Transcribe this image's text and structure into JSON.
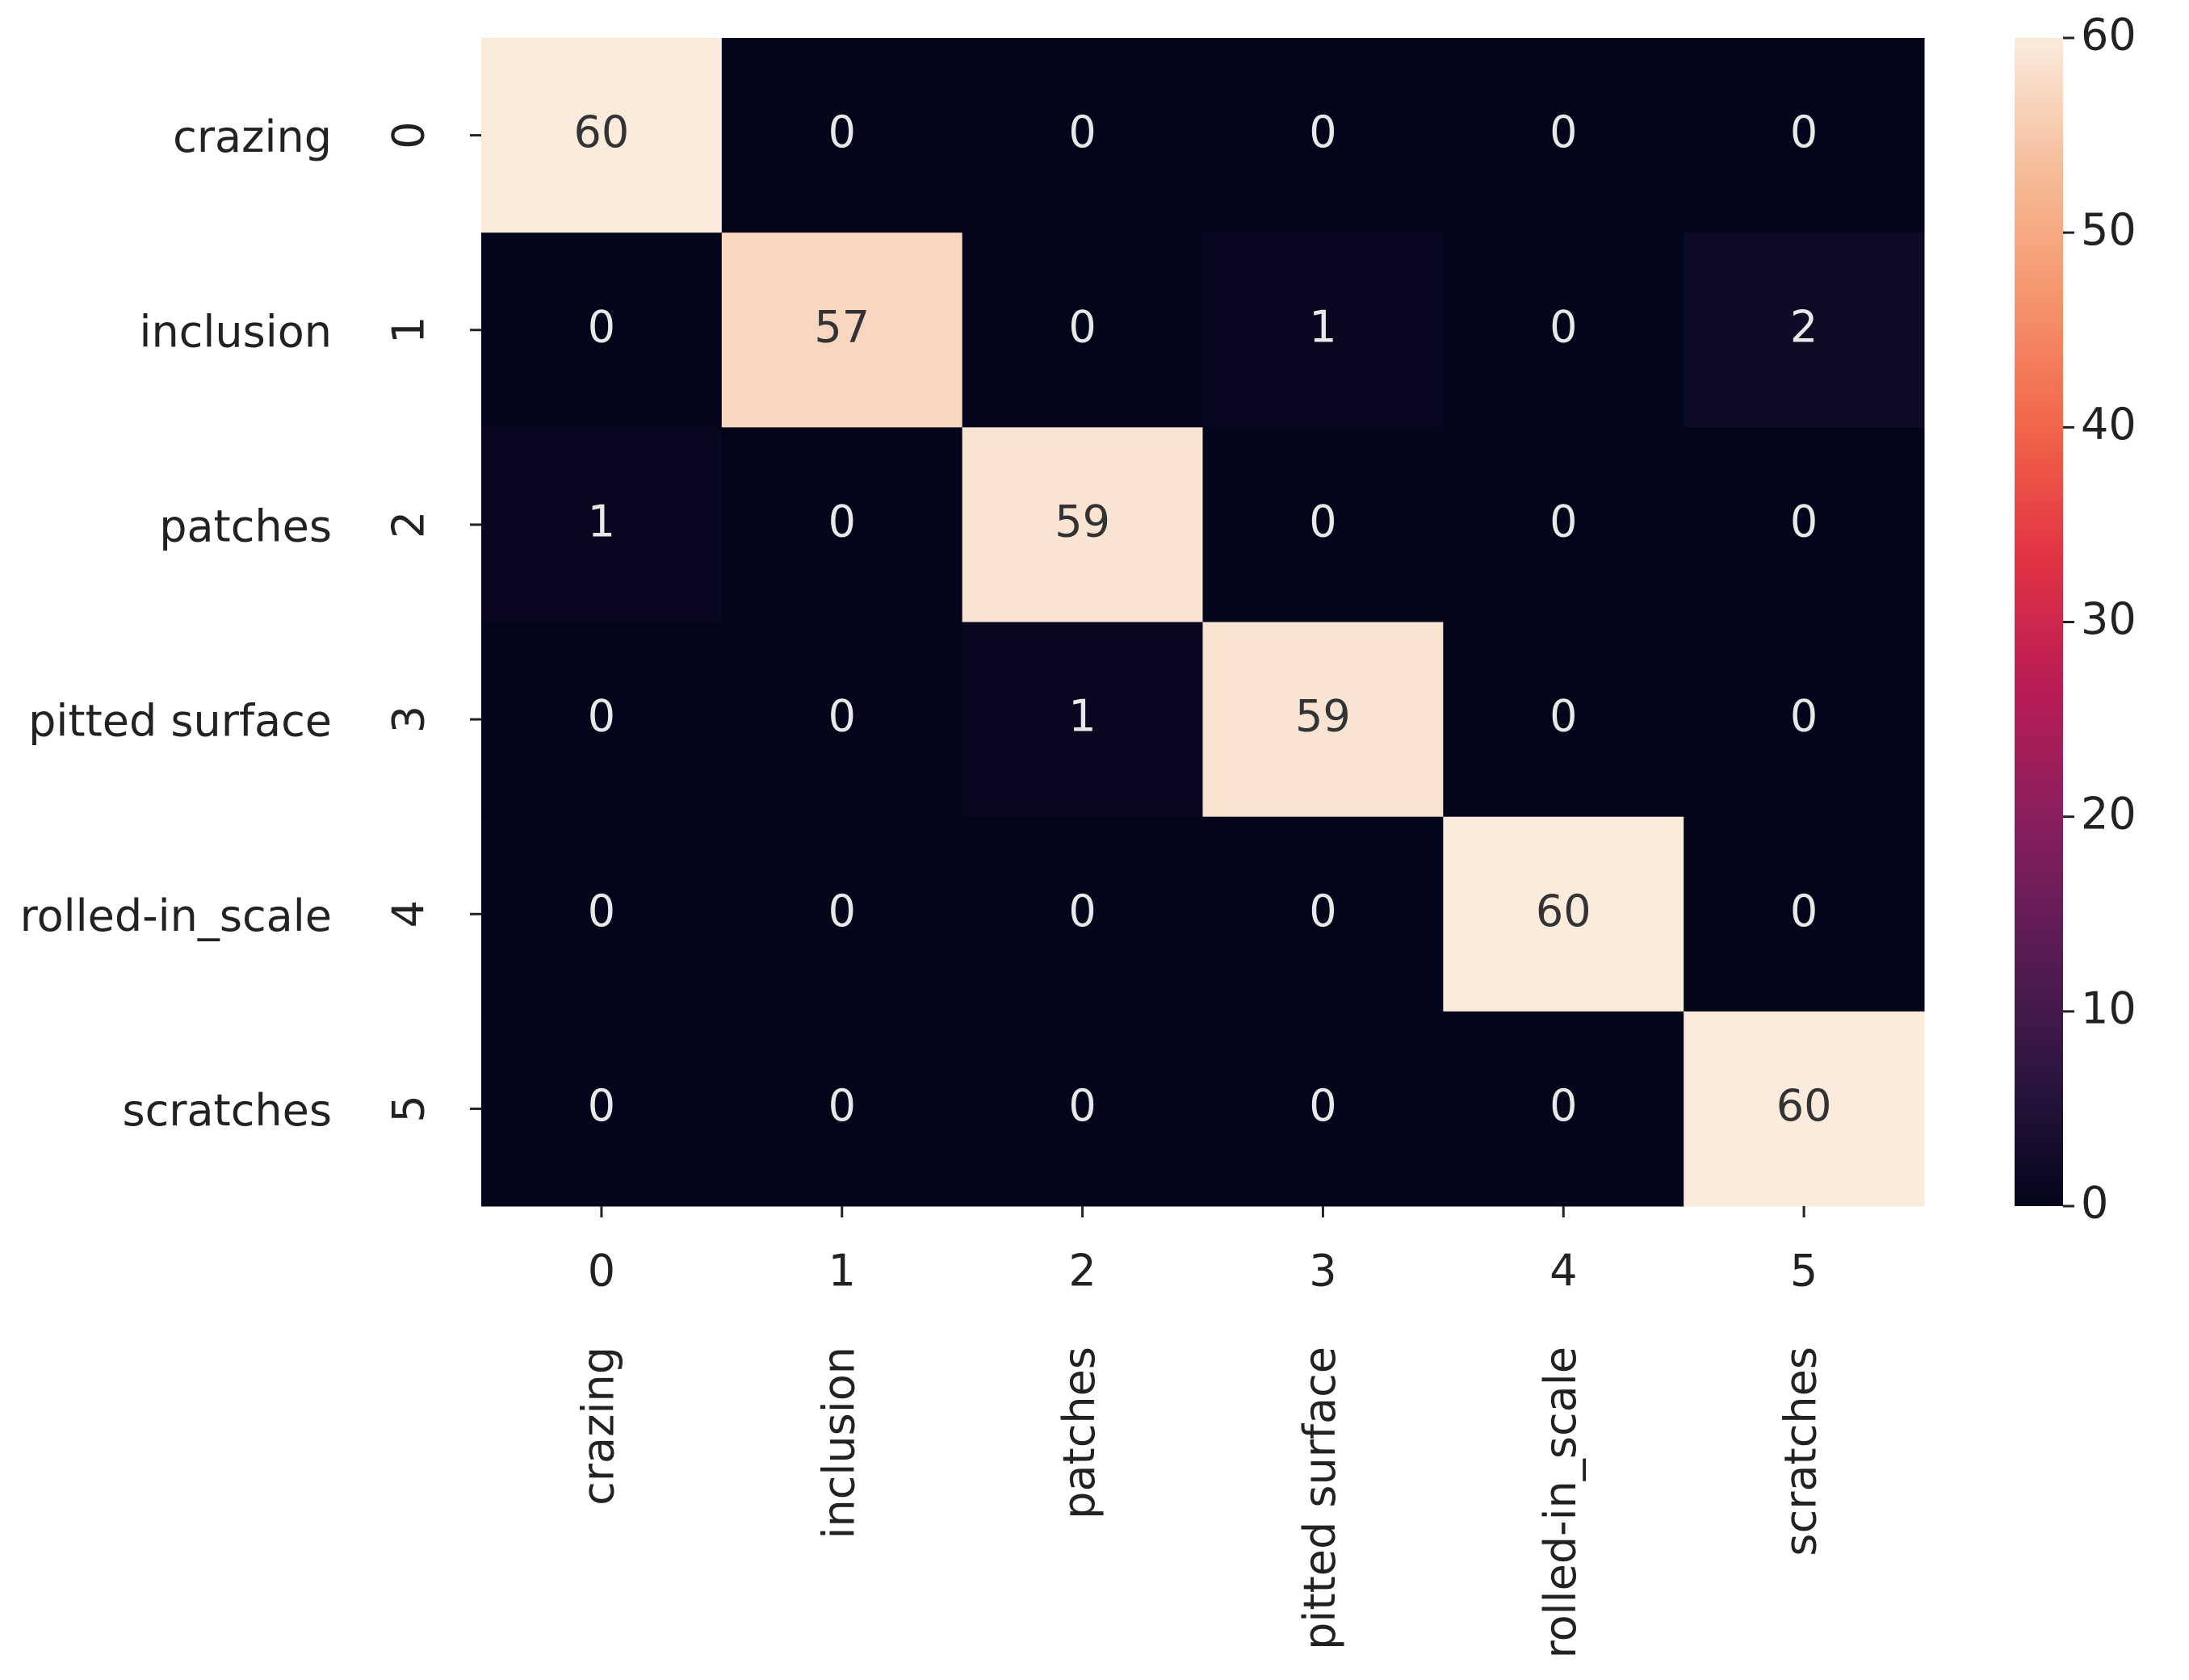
{
  "chart_data": {
    "type": "heatmap",
    "x_categories": [
      "0",
      "1",
      "2",
      "3",
      "4",
      "5"
    ],
    "x_names": [
      "crazing",
      "inclusion",
      "patches",
      "pitted surface",
      "rolled-in_scale",
      "scratches"
    ],
    "y_categories": [
      "0",
      "1",
      "2",
      "3",
      "4",
      "5"
    ],
    "y_names": [
      "crazing",
      "inclusion",
      "patches",
      "pitted surface",
      "rolled-in_scale",
      "scratches"
    ],
    "values": [
      [
        60,
        0,
        0,
        0,
        0,
        0
      ],
      [
        0,
        57,
        0,
        1,
        0,
        2
      ],
      [
        1,
        0,
        59,
        0,
        0,
        0
      ],
      [
        0,
        0,
        1,
        59,
        0,
        0
      ],
      [
        0,
        0,
        0,
        0,
        60,
        0
      ],
      [
        0,
        0,
        0,
        0,
        0,
        60
      ]
    ],
    "clim": [
      0,
      60
    ],
    "cticks": [
      0,
      10,
      20,
      30,
      40,
      50,
      60
    ],
    "colormap": [
      "#03051a",
      "#2c1540",
      "#5a1c55",
      "#8a1f5d",
      "#b91c55",
      "#e13342",
      "#f26549",
      "#f5956c",
      "#f6bd9a",
      "#faebdd"
    ]
  }
}
